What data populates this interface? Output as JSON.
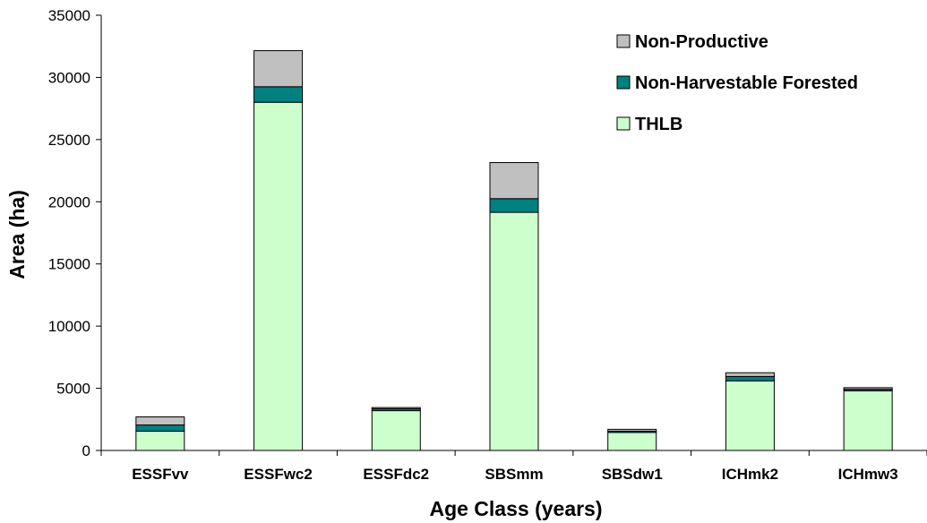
{
  "chart_data": {
    "type": "bar",
    "stacked": true,
    "title": "",
    "xlabel": "Age Class (years)",
    "ylabel": "Area (ha)",
    "ylim": [
      0,
      35000
    ],
    "yticks": [
      "0",
      "5000",
      "10000",
      "15000",
      "20000",
      "25000",
      "30000",
      "35000"
    ],
    "grid": false,
    "legend_position": "top-right",
    "categories": [
      "ESSFvv",
      "ESSFwc2",
      "ESSFdc2",
      "SBSmm",
      "SBSdw1",
      "ICHmk2",
      "ICHmw3"
    ],
    "series": [
      {
        "name": "THLB",
        "color": "#ccffcc",
        "values": [
          1550,
          28000,
          3200,
          19150,
          1450,
          5600,
          4800
        ]
      },
      {
        "name": "Non-Harvestable Forested",
        "color": "#008080",
        "values": [
          500,
          1250,
          150,
          1100,
          100,
          350,
          120
        ]
      },
      {
        "name": "Non-Productive",
        "color": "#c0c0c0",
        "values": [
          650,
          2900,
          100,
          2900,
          150,
          300,
          130
        ]
      }
    ],
    "legend_order": [
      "Non-Productive",
      "Non-Harvestable Forested",
      "THLB"
    ]
  }
}
